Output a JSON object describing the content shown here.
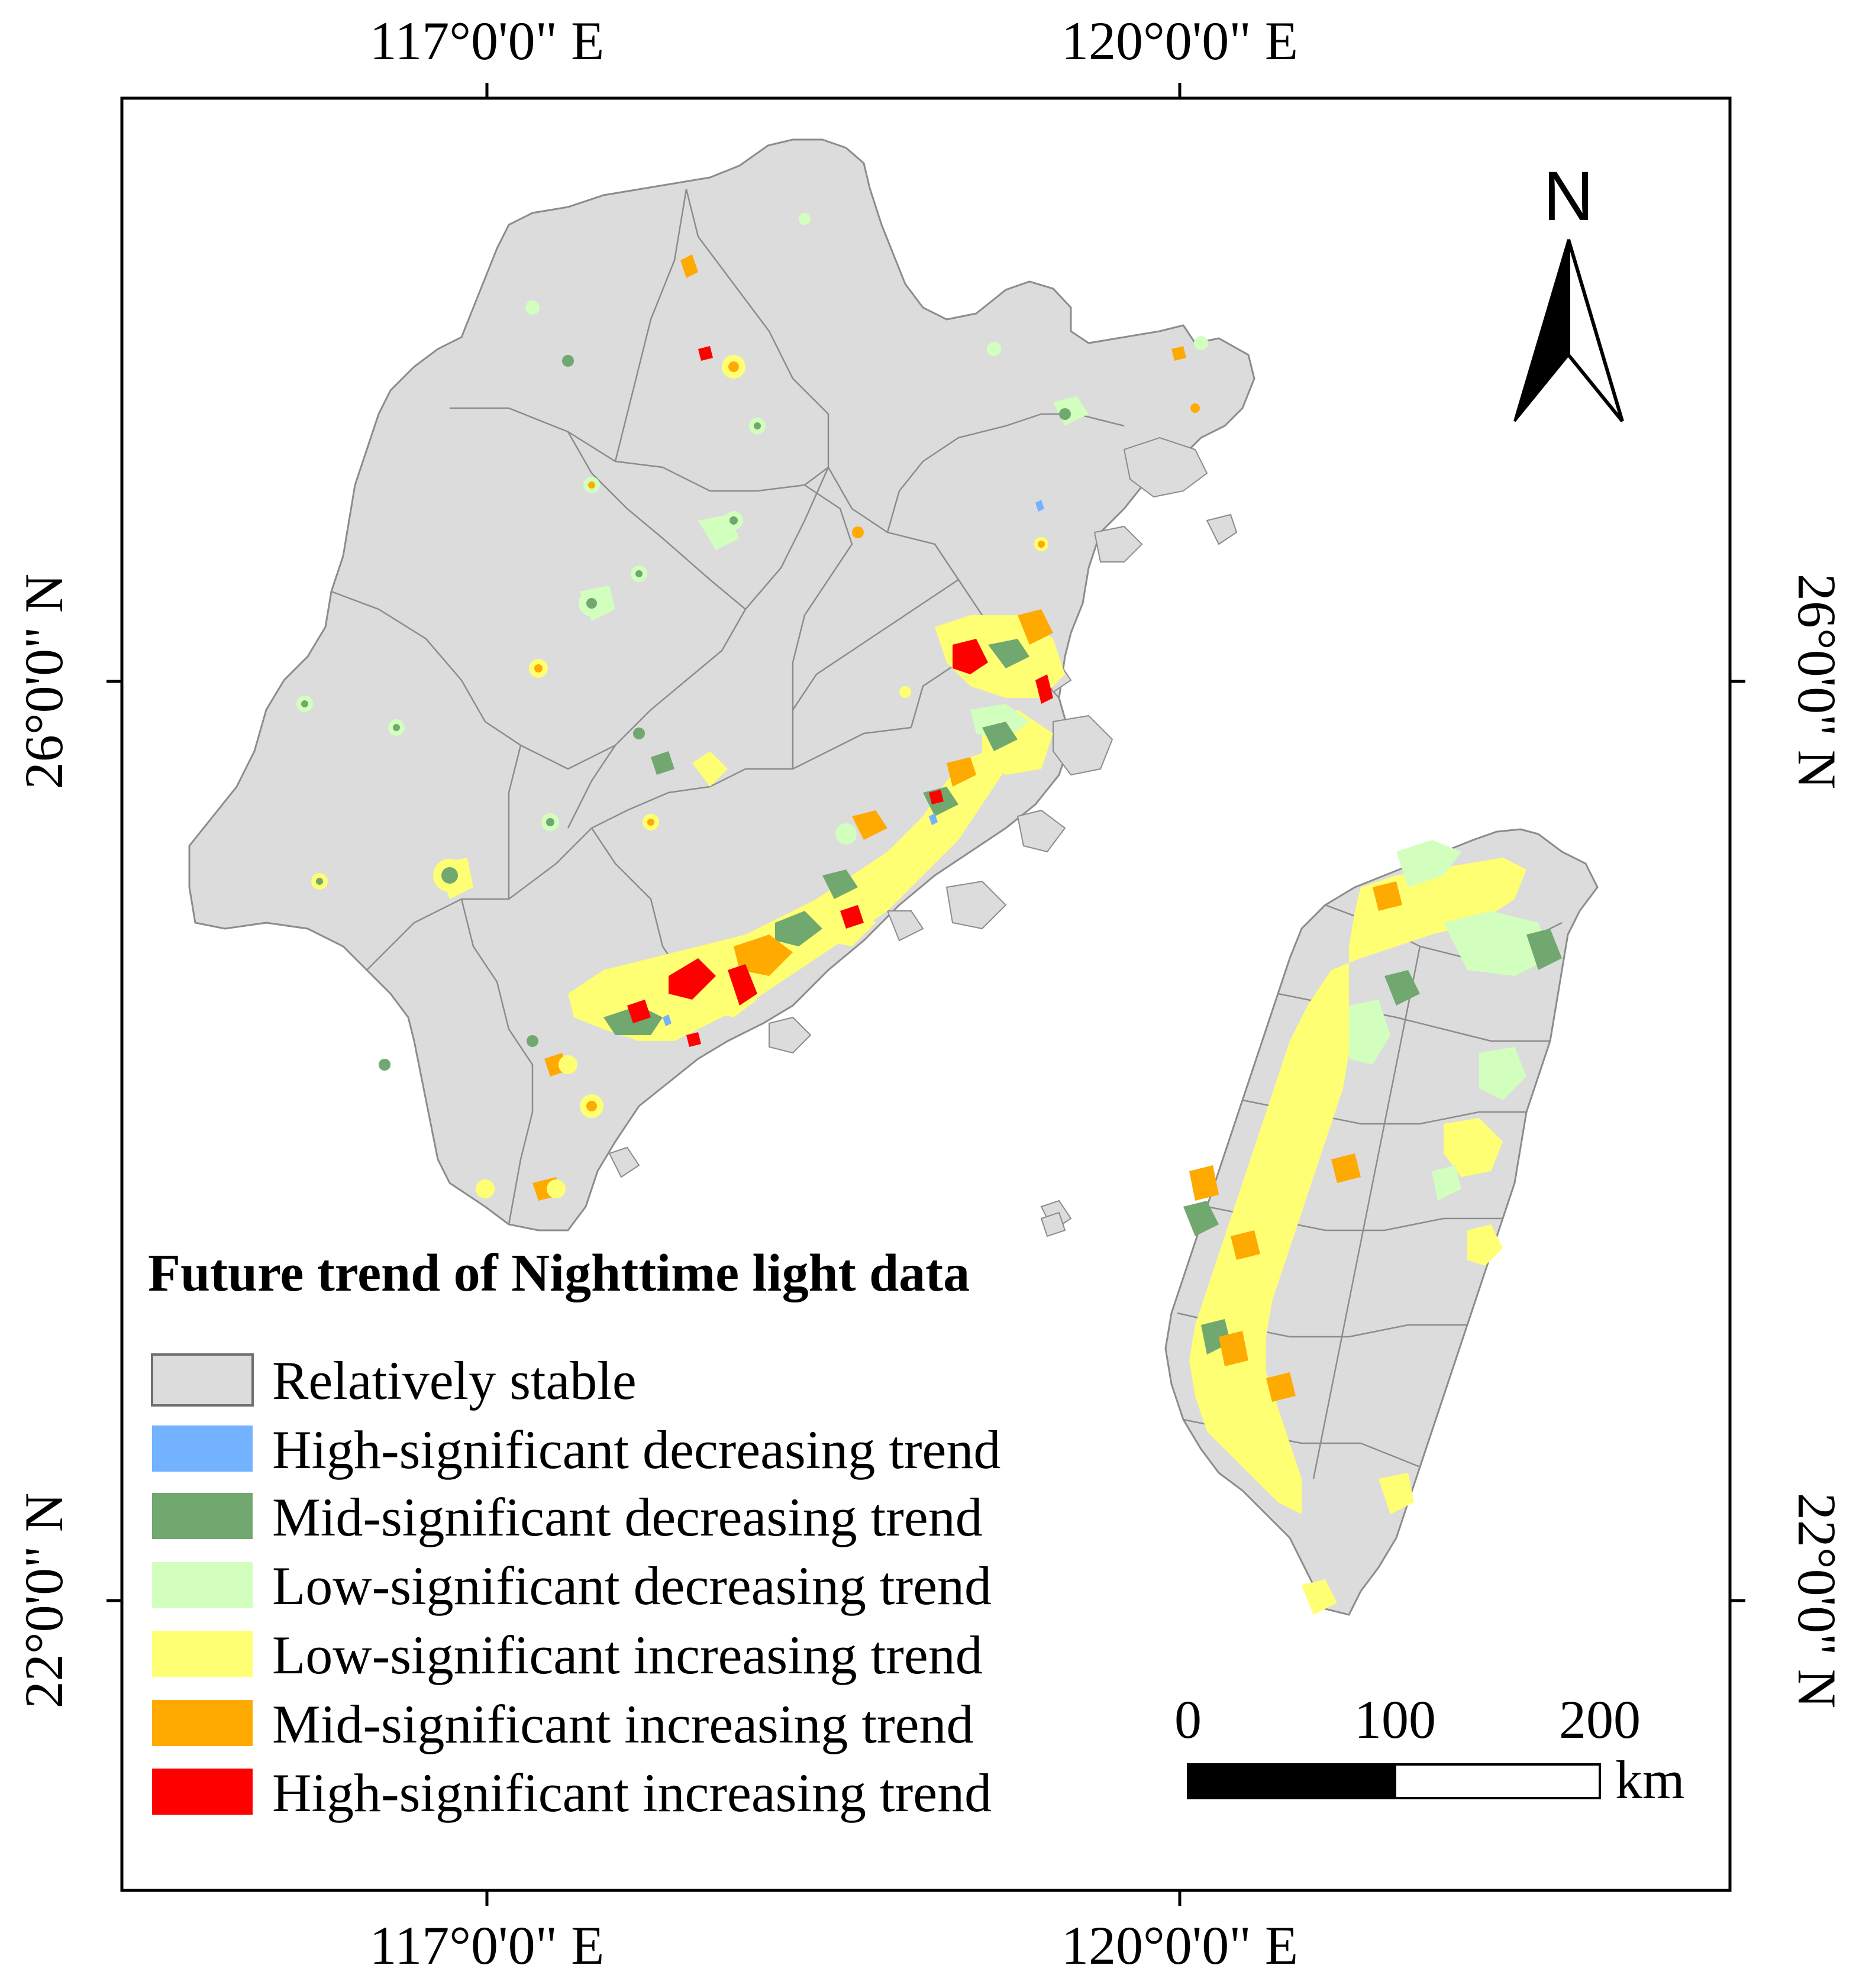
{
  "colors": {
    "relatively_stable": "#dcdcdc",
    "high_sig_decreasing": "#73b2ff",
    "mid_sig_decreasing": "#70a870",
    "low_sig_decreasing": "#d3ffbe",
    "low_sig_increasing": "#ffff73",
    "mid_sig_increasing": "#ffaa00",
    "high_sig_increasing": "#ff0000",
    "boundary": "#8c8c8c"
  },
  "graticule": {
    "top_labels": [
      "117°0'0\" E",
      "120°0'0\" E"
    ],
    "bottom_labels": [
      "117°0'0\" E",
      "120°0'0\" E"
    ],
    "left_labels": [
      "26°0'0\" N",
      "22°0'0\" N"
    ],
    "right_labels": [
      "26°0'0\" N",
      "22°0'0\" N"
    ]
  },
  "north_arrow": {
    "label": "N",
    "icon": "north-arrow-icon"
  },
  "legend": {
    "title": "Future trend of Nighttime light data",
    "items": [
      {
        "label": "Relatively stable",
        "color_key": "relatively_stable"
      },
      {
        "label": "High-significant decreasing trend",
        "color_key": "high_sig_decreasing"
      },
      {
        "label": "Mid-significant decreasing trend",
        "color_key": "mid_sig_decreasing"
      },
      {
        "label": "Low-significant decreasing trend",
        "color_key": "low_sig_decreasing"
      },
      {
        "label": "Low-significant increasing trend",
        "color_key": "low_sig_increasing"
      },
      {
        "label": "Mid-significant increasing trend",
        "color_key": "mid_sig_increasing"
      },
      {
        "label": "High-significant increasing trend",
        "color_key": "high_sig_increasing"
      }
    ]
  },
  "scale_bar": {
    "ticks": [
      "0",
      "100",
      "200"
    ],
    "unit": "km"
  }
}
